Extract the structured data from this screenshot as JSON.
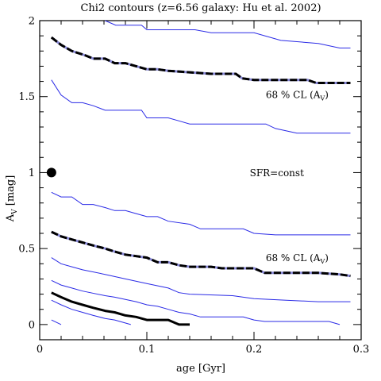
{
  "chart_data": {
    "type": "line",
    "title": "Chi2 contours (z=6.56 galaxy: Hu et al. 2002)",
    "xlabel": "age [Gyr]",
    "ylabel_main": "A",
    "ylabel_sub": "V",
    "ylabel_unit": " [mag]",
    "xlim": [
      0,
      0.3
    ],
    "ylim": [
      -0.1,
      2.0
    ],
    "xticks": [
      {
        "value": 0,
        "label": "0"
      },
      {
        "value": 0.1,
        "label": "0.1"
      },
      {
        "value": 0.2,
        "label": "0.2"
      },
      {
        "value": 0.3,
        "label": "0.3"
      }
    ],
    "yticks": [
      {
        "value": 0,
        "label": "0"
      },
      {
        "value": 0.5,
        "label": "0.5"
      },
      {
        "value": 1,
        "label": "1"
      },
      {
        "value": 1.5,
        "label": "1.5"
      },
      {
        "value": 2,
        "label": "2"
      }
    ],
    "grid": false,
    "colors": {
      "contour": "#2a2ae6",
      "cl": "#000000",
      "cl_dash": "#8a8ad8"
    },
    "point": {
      "x": 0.011,
      "y": 1.0
    },
    "annotations": [
      {
        "text": "68 % CL (A",
        "sub": "V",
        "end": ")",
        "x": 0.211,
        "y": 1.515
      },
      {
        "text": "SFR=const",
        "x": 0.196,
        "y": 1.0
      },
      {
        "text": "68 % CL (A",
        "sub": "V",
        "end": ")",
        "x": 0.211,
        "y": 0.44
      }
    ],
    "series": [
      {
        "style": "thin",
        "points": [
          [
            0.061,
            2.0
          ],
          [
            0.071,
            1.97
          ],
          [
            0.095,
            1.97
          ],
          [
            0.1,
            1.94
          ],
          [
            0.145,
            1.94
          ],
          [
            0.16,
            1.92
          ],
          [
            0.2,
            1.92
          ],
          [
            0.225,
            1.87
          ],
          [
            0.26,
            1.85
          ],
          [
            0.28,
            1.82
          ],
          [
            0.29,
            1.82
          ]
        ]
      },
      {
        "style": "cl",
        "points": [
          [
            0.011,
            1.89
          ],
          [
            0.02,
            1.84
          ],
          [
            0.03,
            1.8
          ],
          [
            0.043,
            1.77
          ],
          [
            0.05,
            1.75
          ],
          [
            0.061,
            1.75
          ],
          [
            0.07,
            1.72
          ],
          [
            0.08,
            1.72
          ],
          [
            0.09,
            1.7
          ],
          [
            0.1,
            1.68
          ],
          [
            0.11,
            1.68
          ],
          [
            0.12,
            1.67
          ],
          [
            0.14,
            1.66
          ],
          [
            0.16,
            1.65
          ],
          [
            0.183,
            1.65
          ],
          [
            0.189,
            1.62
          ],
          [
            0.2,
            1.61
          ],
          [
            0.25,
            1.61
          ],
          [
            0.258,
            1.59
          ],
          [
            0.29,
            1.59
          ]
        ]
      },
      {
        "style": "thin",
        "points": [
          [
            0.011,
            1.61
          ],
          [
            0.02,
            1.51
          ],
          [
            0.03,
            1.46
          ],
          [
            0.04,
            1.46
          ],
          [
            0.05,
            1.44
          ],
          [
            0.061,
            1.41
          ],
          [
            0.07,
            1.41
          ],
          [
            0.095,
            1.41
          ],
          [
            0.1,
            1.36
          ],
          [
            0.11,
            1.36
          ],
          [
            0.12,
            1.36
          ],
          [
            0.13,
            1.34
          ],
          [
            0.14,
            1.32
          ],
          [
            0.211,
            1.32
          ],
          [
            0.22,
            1.29
          ],
          [
            0.24,
            1.26
          ],
          [
            0.29,
            1.26
          ]
        ]
      },
      {
        "style": "thin",
        "points": [
          [
            0.011,
            0.87
          ],
          [
            0.02,
            0.84
          ],
          [
            0.03,
            0.84
          ],
          [
            0.04,
            0.79
          ],
          [
            0.05,
            0.79
          ],
          [
            0.061,
            0.77
          ],
          [
            0.07,
            0.75
          ],
          [
            0.08,
            0.75
          ],
          [
            0.09,
            0.73
          ],
          [
            0.1,
            0.71
          ],
          [
            0.11,
            0.71
          ],
          [
            0.12,
            0.68
          ],
          [
            0.14,
            0.66
          ],
          [
            0.15,
            0.63
          ],
          [
            0.19,
            0.63
          ],
          [
            0.2,
            0.6
          ],
          [
            0.22,
            0.59
          ],
          [
            0.29,
            0.59
          ]
        ]
      },
      {
        "style": "cl",
        "points": [
          [
            0.011,
            0.61
          ],
          [
            0.02,
            0.58
          ],
          [
            0.03,
            0.56
          ],
          [
            0.04,
            0.54
          ],
          [
            0.05,
            0.52
          ],
          [
            0.061,
            0.5
          ],
          [
            0.07,
            0.48
          ],
          [
            0.08,
            0.46
          ],
          [
            0.09,
            0.45
          ],
          [
            0.1,
            0.44
          ],
          [
            0.11,
            0.41
          ],
          [
            0.12,
            0.41
          ],
          [
            0.13,
            0.39
          ],
          [
            0.14,
            0.38
          ],
          [
            0.16,
            0.38
          ],
          [
            0.17,
            0.37
          ],
          [
            0.2,
            0.37
          ],
          [
            0.21,
            0.34
          ],
          [
            0.22,
            0.34
          ],
          [
            0.26,
            0.34
          ],
          [
            0.28,
            0.33
          ],
          [
            0.29,
            0.32
          ]
        ]
      },
      {
        "style": "thin",
        "points": [
          [
            0.011,
            0.44
          ],
          [
            0.02,
            0.4
          ],
          [
            0.03,
            0.38
          ],
          [
            0.04,
            0.36
          ],
          [
            0.061,
            0.33
          ],
          [
            0.08,
            0.3
          ],
          [
            0.1,
            0.27
          ],
          [
            0.12,
            0.24
          ],
          [
            0.13,
            0.21
          ],
          [
            0.14,
            0.2
          ],
          [
            0.18,
            0.19
          ],
          [
            0.2,
            0.17
          ],
          [
            0.23,
            0.16
          ],
          [
            0.26,
            0.15
          ],
          [
            0.29,
            0.15
          ]
        ]
      },
      {
        "style": "thin",
        "points": [
          [
            0.011,
            0.29
          ],
          [
            0.02,
            0.26
          ],
          [
            0.03,
            0.24
          ],
          [
            0.04,
            0.22
          ],
          [
            0.061,
            0.19
          ],
          [
            0.07,
            0.18
          ],
          [
            0.09,
            0.15
          ],
          [
            0.1,
            0.13
          ],
          [
            0.11,
            0.12
          ],
          [
            0.12,
            0.1
          ],
          [
            0.13,
            0.08
          ],
          [
            0.14,
            0.07
          ],
          [
            0.15,
            0.05
          ],
          [
            0.19,
            0.05
          ],
          [
            0.2,
            0.03
          ],
          [
            0.21,
            0.02
          ],
          [
            0.27,
            0.02
          ],
          [
            0.28,
            0.0
          ]
        ]
      },
      {
        "style": "thick",
        "points": [
          [
            0.011,
            0.21
          ],
          [
            0.02,
            0.18
          ],
          [
            0.03,
            0.15
          ],
          [
            0.04,
            0.13
          ],
          [
            0.05,
            0.11
          ],
          [
            0.061,
            0.09
          ],
          [
            0.07,
            0.08
          ],
          [
            0.08,
            0.06
          ],
          [
            0.09,
            0.05
          ],
          [
            0.1,
            0.03
          ],
          [
            0.12,
            0.03
          ],
          [
            0.13,
            0.0
          ],
          [
            0.14,
            0.0
          ]
        ]
      },
      {
        "style": "thin",
        "points": [
          [
            0.011,
            0.16
          ],
          [
            0.02,
            0.13
          ],
          [
            0.03,
            0.1
          ],
          [
            0.04,
            0.08
          ],
          [
            0.05,
            0.06
          ],
          [
            0.061,
            0.04
          ],
          [
            0.07,
            0.03
          ],
          [
            0.085,
            0.0
          ]
        ]
      },
      {
        "style": "thin",
        "points": [
          [
            0.011,
            0.03
          ],
          [
            0.02,
            0.0
          ]
        ]
      }
    ]
  }
}
